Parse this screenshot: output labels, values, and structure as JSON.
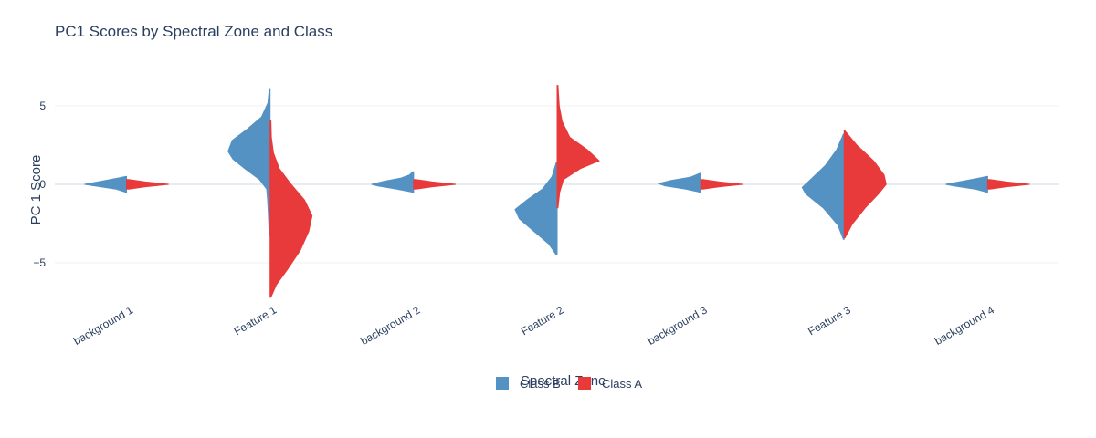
{
  "chart_data": {
    "type": "violin",
    "title": "PC1 Scores by Spectral Zone and Class",
    "xlabel": "Spectral Zone",
    "ylabel": "PC 1 Score",
    "ylim": [
      -7.6,
      7.0
    ],
    "yticks": [
      5,
      0,
      -5
    ],
    "ytick_labels": [
      "5",
      "0",
      "−5"
    ],
    "grid": true,
    "legend_placement": "bottom-center",
    "categories": [
      "background 1",
      "Feature 1",
      "background 2",
      "Feature 2",
      "background 3",
      "Feature 3",
      "background 4"
    ],
    "series": [
      {
        "name": "Class B",
        "side": "negative",
        "color": "#5592c4",
        "violins": [
          {
            "min": -0.5,
            "max": 0.5,
            "profile": [
              [
                -0.5,
                0.02
              ],
              [
                -0.3,
                0.25
              ],
              [
                -0.1,
                0.75
              ],
              [
                0.0,
                1.0
              ],
              [
                0.2,
                0.6
              ],
              [
                0.4,
                0.2
              ],
              [
                0.5,
                0.02
              ]
            ]
          },
          {
            "min": -3.3,
            "max": 6.1,
            "profile": [
              [
                -3.3,
                0.02
              ],
              [
                -2.0,
                0.04
              ],
              [
                -1.0,
                0.06
              ],
              [
                -0.3,
                0.08
              ],
              [
                0.3,
                0.25
              ],
              [
                1.0,
                0.6
              ],
              [
                1.6,
                0.88
              ],
              [
                2.1,
                1.0
              ],
              [
                2.8,
                0.9
              ],
              [
                3.5,
                0.55
              ],
              [
                4.3,
                0.2
              ],
              [
                5.2,
                0.05
              ],
              [
                6.1,
                0.02
              ]
            ]
          },
          {
            "min": -0.5,
            "max": 0.8,
            "profile": [
              [
                -0.5,
                0.02
              ],
              [
                -0.3,
                0.4
              ],
              [
                -0.1,
                0.85
              ],
              [
                0.0,
                1.0
              ],
              [
                0.2,
                0.7
              ],
              [
                0.4,
                0.3
              ],
              [
                0.6,
                0.1
              ],
              [
                0.8,
                0.02
              ]
            ]
          },
          {
            "min": -4.5,
            "max": 1.4,
            "profile": [
              [
                -4.5,
                0.02
              ],
              [
                -3.8,
                0.2
              ],
              [
                -3.0,
                0.55
              ],
              [
                -2.2,
                0.9
              ],
              [
                -1.6,
                1.0
              ],
              [
                -1.0,
                0.72
              ],
              [
                -0.3,
                0.35
              ],
              [
                0.5,
                0.12
              ],
              [
                1.4,
                0.02
              ]
            ]
          },
          {
            "min": -0.5,
            "max": 0.7,
            "profile": [
              [
                -0.5,
                0.02
              ],
              [
                -0.3,
                0.35
              ],
              [
                -0.1,
                0.85
              ],
              [
                0.05,
                1.0
              ],
              [
                0.25,
                0.7
              ],
              [
                0.45,
                0.25
              ],
              [
                0.7,
                0.02
              ]
            ]
          },
          {
            "min": -3.5,
            "max": 3.2,
            "profile": [
              [
                -3.5,
                0.02
              ],
              [
                -2.6,
                0.15
              ],
              [
                -1.5,
                0.5
              ],
              [
                -0.6,
                0.92
              ],
              [
                -0.2,
                1.0
              ],
              [
                0.3,
                0.8
              ],
              [
                1.2,
                0.45
              ],
              [
                2.2,
                0.18
              ],
              [
                3.2,
                0.02
              ]
            ]
          },
          {
            "min": -0.5,
            "max": 0.5,
            "profile": [
              [
                -0.5,
                0.02
              ],
              [
                -0.3,
                0.3
              ],
              [
                -0.1,
                0.8
              ],
              [
                0.0,
                1.0
              ],
              [
                0.2,
                0.6
              ],
              [
                0.4,
                0.2
              ],
              [
                0.5,
                0.02
              ]
            ]
          }
        ]
      },
      {
        "name": "Class A",
        "side": "positive",
        "color": "#e8393b",
        "violins": [
          {
            "min": -0.3,
            "max": 0.3,
            "profile": [
              [
                -0.3,
                0.05
              ],
              [
                -0.15,
                0.45
              ],
              [
                0.0,
                1.0
              ],
              [
                0.15,
                0.45
              ],
              [
                0.3,
                0.05
              ]
            ]
          },
          {
            "min": -7.2,
            "max": 4.1,
            "profile": [
              [
                -7.2,
                0.02
              ],
              [
                -6.4,
                0.15
              ],
              [
                -5.4,
                0.42
              ],
              [
                -4.2,
                0.72
              ],
              [
                -3.0,
                0.92
              ],
              [
                -2.0,
                1.0
              ],
              [
                -1.0,
                0.82
              ],
              [
                0.0,
                0.5
              ],
              [
                1.0,
                0.22
              ],
              [
                2.0,
                0.08
              ],
              [
                3.0,
                0.03
              ],
              [
                4.1,
                0.02
              ]
            ]
          },
          {
            "min": -0.3,
            "max": 0.3,
            "profile": [
              [
                -0.3,
                0.05
              ],
              [
                -0.15,
                0.45
              ],
              [
                0.0,
                1.0
              ],
              [
                0.15,
                0.45
              ],
              [
                0.3,
                0.05
              ]
            ]
          },
          {
            "min": -1.5,
            "max": 6.3,
            "profile": [
              [
                -1.5,
                0.02
              ],
              [
                -0.5,
                0.06
              ],
              [
                0.3,
                0.15
              ],
              [
                1.0,
                0.55
              ],
              [
                1.5,
                1.0
              ],
              [
                2.2,
                0.72
              ],
              [
                3.0,
                0.3
              ],
              [
                4.0,
                0.12
              ],
              [
                5.0,
                0.05
              ],
              [
                6.3,
                0.02
              ]
            ]
          },
          {
            "min": -0.3,
            "max": 0.3,
            "profile": [
              [
                -0.3,
                0.05
              ],
              [
                -0.15,
                0.45
              ],
              [
                0.0,
                1.0
              ],
              [
                0.15,
                0.45
              ],
              [
                0.3,
                0.05
              ]
            ]
          },
          {
            "min": -3.4,
            "max": 3.4,
            "profile": [
              [
                -3.4,
                0.02
              ],
              [
                -2.5,
                0.2
              ],
              [
                -1.5,
                0.5
              ],
              [
                -0.6,
                0.82
              ],
              [
                0.0,
                1.0
              ],
              [
                0.6,
                0.95
              ],
              [
                1.5,
                0.7
              ],
              [
                2.5,
                0.3
              ],
              [
                3.4,
                0.02
              ]
            ]
          },
          {
            "min": -0.3,
            "max": 0.3,
            "profile": [
              [
                -0.3,
                0.05
              ],
              [
                -0.15,
                0.45
              ],
              [
                0.0,
                1.0
              ],
              [
                0.15,
                0.45
              ],
              [
                0.3,
                0.05
              ]
            ]
          }
        ]
      }
    ]
  }
}
